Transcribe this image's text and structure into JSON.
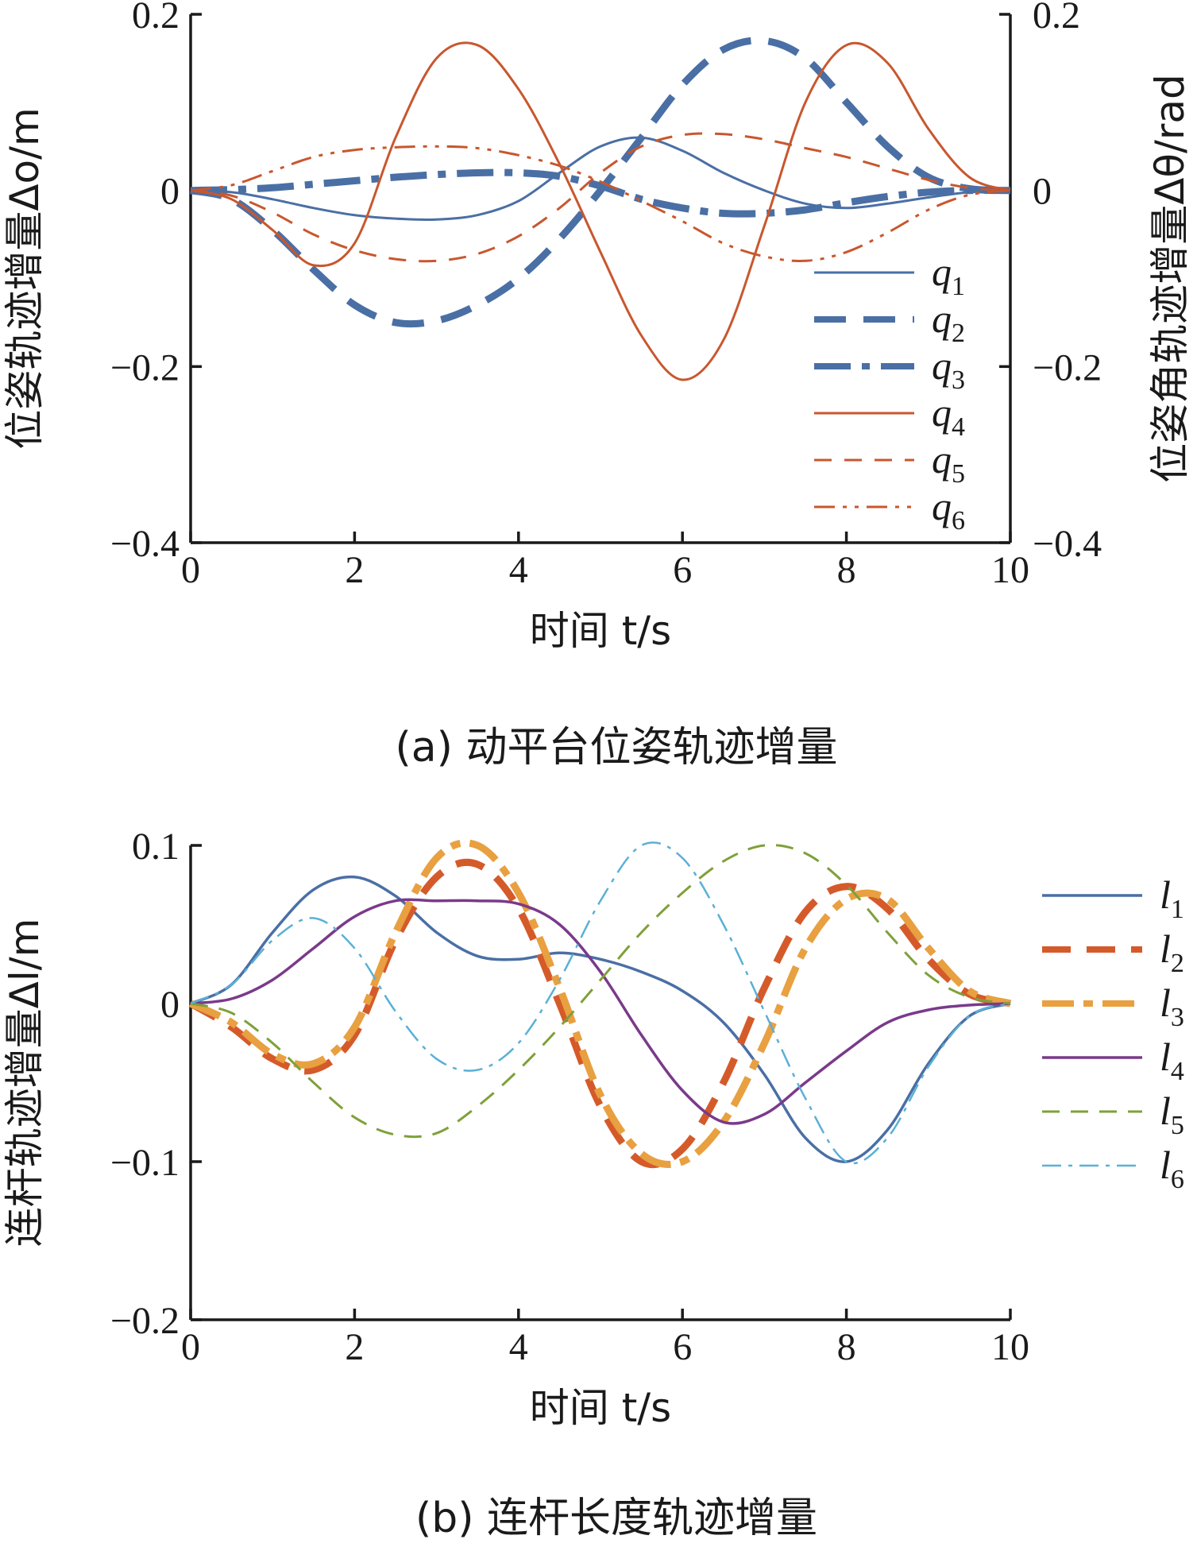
{
  "chart_data": [
    {
      "type": "line",
      "caption": "(a) 动平台位姿轨迹增量",
      "xlabel": "时间 t/s",
      "ylabel": "位姿轨迹增量Δo/m",
      "y2label": "位姿角轨迹增量Δθ/rad",
      "xlim": [
        0,
        10
      ],
      "ylim": [
        -0.4,
        0.2
      ],
      "xticks": [
        "0",
        "2",
        "4",
        "6",
        "8",
        "10"
      ],
      "yticks": [
        "0.2",
        "0",
        "−0.2",
        "−0.4"
      ],
      "y2ticks": [
        "0.2",
        "0",
        "−0.2",
        "−0.4"
      ],
      "legend_position": "bottom-right",
      "x": [
        0,
        0.5,
        1,
        1.5,
        2,
        2.5,
        3,
        3.5,
        4,
        4.5,
        5,
        5.5,
        6,
        6.5,
        7,
        7.5,
        8,
        8.5,
        9,
        9.5,
        10
      ],
      "series": [
        {
          "name": "q",
          "sub": "1",
          "color": "#4a6fa5",
          "dash": "",
          "width": 3,
          "values": [
            0,
            -0.002,
            -0.01,
            -0.02,
            -0.028,
            -0.032,
            -0.033,
            -0.028,
            -0.012,
            0.02,
            0.05,
            0.06,
            0.045,
            0.02,
            0,
            -0.015,
            -0.02,
            -0.015,
            -0.008,
            -0.002,
            0
          ]
        },
        {
          "name": "q",
          "sub": "2",
          "color": "#4a6fa5",
          "dash": "40,22",
          "width": 9,
          "values": [
            0,
            -0.01,
            -0.045,
            -0.09,
            -0.13,
            -0.15,
            -0.148,
            -0.13,
            -0.1,
            -0.055,
            0,
            0.06,
            0.12,
            0.16,
            0.17,
            0.15,
            0.1,
            0.05,
            0.015,
            0.002,
            0
          ]
        },
        {
          "name": "q",
          "sub": "3",
          "color": "#4a6fa5",
          "dash": "46,14,10,14",
          "width": 9,
          "values": [
            0,
            0.001,
            0.003,
            0.007,
            0.011,
            0.015,
            0.018,
            0.02,
            0.02,
            0.016,
            0.005,
            -0.01,
            -0.02,
            -0.026,
            -0.026,
            -0.022,
            -0.014,
            -0.007,
            -0.002,
            0,
            0
          ]
        },
        {
          "name": "q",
          "sub": "4",
          "color": "#c8572e",
          "dash": "",
          "width": 3,
          "values": [
            0,
            -0.01,
            -0.045,
            -0.085,
            -0.06,
            0.06,
            0.15,
            0.165,
            0.115,
            0.03,
            -0.07,
            -0.165,
            -0.215,
            -0.17,
            -0.04,
            0.1,
            0.165,
            0.145,
            0.07,
            0.015,
            0
          ]
        },
        {
          "name": "q",
          "sub": "5",
          "color": "#c8572e",
          "dash": "22,16",
          "width": 3,
          "values": [
            0,
            -0.006,
            -0.025,
            -0.05,
            -0.068,
            -0.078,
            -0.08,
            -0.072,
            -0.052,
            -0.02,
            0.02,
            0.05,
            0.063,
            0.064,
            0.058,
            0.048,
            0.038,
            0.025,
            0.012,
            0.003,
            0
          ]
        },
        {
          "name": "q",
          "sub": "6",
          "color": "#c8572e",
          "dash": "26,10,5,10,5,10",
          "width": 3,
          "values": [
            0,
            0.006,
            0.022,
            0.038,
            0.046,
            0.049,
            0.05,
            0.048,
            0.04,
            0.028,
            0.01,
            -0.012,
            -0.035,
            -0.06,
            -0.075,
            -0.08,
            -0.07,
            -0.048,
            -0.022,
            -0.005,
            0
          ]
        }
      ]
    },
    {
      "type": "line",
      "caption": "(b) 连杆长度轨迹增量",
      "xlabel": "时间 t/s",
      "ylabel": "连杆轨迹增量Δl/m",
      "xlim": [
        0,
        10
      ],
      "ylim": [
        -0.2,
        0.1
      ],
      "xticks": [
        "0",
        "2",
        "4",
        "6",
        "8",
        "10"
      ],
      "yticks": [
        "0.1",
        "0",
        "−0.1",
        "−0.2"
      ],
      "legend_position": "right",
      "x": [
        0,
        0.5,
        1,
        1.5,
        2,
        2.5,
        3,
        3.5,
        4,
        4.5,
        5,
        5.5,
        6,
        6.5,
        7,
        7.5,
        8,
        8.5,
        9,
        9.5,
        10
      ],
      "series": [
        {
          "name": "l",
          "sub": "1",
          "color": "#4a6fa5",
          "dash": "",
          "width": 3.5,
          "values": [
            0,
            0.012,
            0.045,
            0.072,
            0.08,
            0.068,
            0.045,
            0.03,
            0.028,
            0.032,
            0.028,
            0.02,
            0.008,
            -0.012,
            -0.045,
            -0.085,
            -0.1,
            -0.08,
            -0.038,
            -0.008,
            0
          ]
        },
        {
          "name": "l",
          "sub": "2",
          "color": "#d55a2a",
          "dash": "36,20",
          "width": 9,
          "values": [
            0,
            -0.015,
            -0.035,
            -0.042,
            -0.02,
            0.04,
            0.08,
            0.088,
            0.06,
            0.0,
            -0.065,
            -0.1,
            -0.092,
            -0.05,
            0.01,
            0.058,
            0.074,
            0.06,
            0.028,
            0.006,
            0
          ]
        },
        {
          "name": "l",
          "sub": "3",
          "color": "#e8a040",
          "dash": "40,12,12,12",
          "width": 9,
          "values": [
            0,
            -0.012,
            -0.032,
            -0.038,
            -0.015,
            0.045,
            0.092,
            0.1,
            0.07,
            0.01,
            -0.058,
            -0.095,
            -0.1,
            -0.075,
            -0.025,
            0.035,
            0.066,
            0.066,
            0.035,
            0.008,
            0
          ]
        },
        {
          "name": "l",
          "sub": "4",
          "color": "#7a3a8a",
          "dash": "",
          "width": 3.5,
          "values": [
            0,
            0.003,
            0.015,
            0.035,
            0.055,
            0.065,
            0.065,
            0.065,
            0.063,
            0.05,
            0.02,
            -0.02,
            -0.055,
            -0.075,
            -0.07,
            -0.05,
            -0.03,
            -0.012,
            -0.004,
            -0.001,
            0
          ]
        },
        {
          "name": "l",
          "sub": "5",
          "color": "#7fa03a",
          "dash": "22,14",
          "width": 3,
          "values": [
            0,
            -0.006,
            -0.025,
            -0.05,
            -0.072,
            -0.083,
            -0.082,
            -0.065,
            -0.042,
            -0.015,
            0.015,
            0.045,
            0.07,
            0.09,
            0.1,
            0.095,
            0.075,
            0.045,
            0.018,
            0.004,
            0
          ]
        },
        {
          "name": "l",
          "sub": "6",
          "color": "#5ab0d6",
          "dash": "24,9,5,9",
          "width": 2.5,
          "values": [
            0,
            0.012,
            0.04,
            0.054,
            0.035,
            -0.005,
            -0.035,
            -0.042,
            -0.025,
            0.015,
            0.065,
            0.1,
            0.092,
            0.05,
            -0.005,
            -0.06,
            -0.1,
            -0.085,
            -0.04,
            -0.008,
            0
          ]
        }
      ]
    }
  ]
}
